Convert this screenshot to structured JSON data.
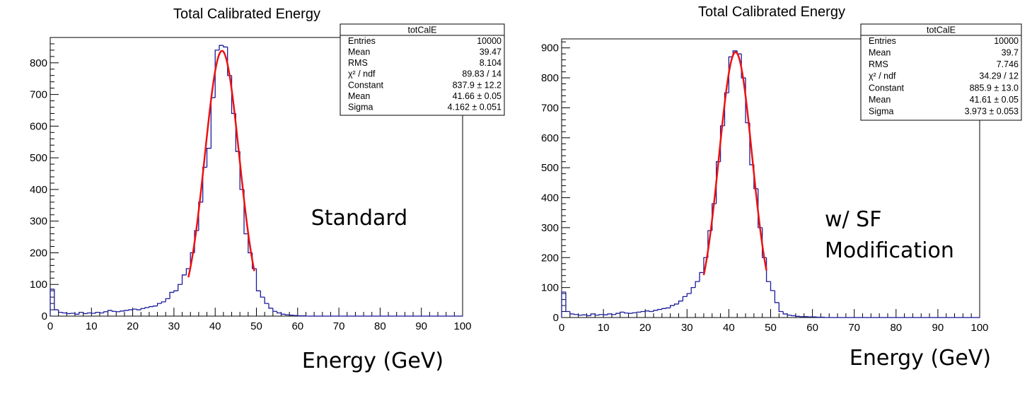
{
  "chart_data": [
    {
      "type": "bar",
      "title": "Total Calibrated Energy",
      "annotation": "Standard",
      "xlabel": "Energy (GeV)",
      "ylabel": "",
      "xlim": [
        0,
        100
      ],
      "ylim": [
        0,
        880
      ],
      "xticks": [
        0,
        10,
        20,
        30,
        40,
        50,
        60,
        70,
        80,
        90,
        100
      ],
      "yticks": [
        0,
        100,
        200,
        300,
        400,
        500,
        600,
        700,
        800
      ],
      "bin_width": 1,
      "values": [
        85,
        20,
        12,
        10,
        8,
        9,
        6,
        12,
        8,
        10,
        9,
        12,
        10,
        14,
        18,
        15,
        14,
        16,
        18,
        20,
        22,
        20,
        24,
        27,
        30,
        32,
        40,
        45,
        55,
        75,
        80,
        100,
        130,
        150,
        200,
        270,
        360,
        470,
        530,
        690,
        840,
        855,
        850,
        760,
        640,
        520,
        400,
        260,
        200,
        150,
        80,
        60,
        40,
        25,
        15,
        10,
        6,
        4,
        3,
        2,
        1,
        1,
        0,
        0,
        0,
        0,
        0,
        0,
        0,
        0,
        0,
        0,
        0,
        0,
        0,
        0,
        0,
        0,
        0,
        0,
        0,
        0,
        0,
        0,
        0,
        0,
        0,
        0,
        0,
        0,
        0,
        0,
        0,
        0,
        0,
        0,
        0,
        0,
        0,
        0
      ],
      "fit": {
        "function": "gaus",
        "constant": 837.9,
        "mean": 41.66,
        "sigma": 4.162,
        "range": [
          33.5,
          49.5
        ]
      },
      "stats": {
        "name": "totCalE",
        "rows": [
          {
            "label": "Entries",
            "value": "10000"
          },
          {
            "label": "Mean",
            "value": "39.47"
          },
          {
            "label": "RMS",
            "value": "8.104"
          },
          {
            "label": "χ² / ndf",
            "value": "89.83 / 14"
          },
          {
            "label": "Constant",
            "value": "837.9 ± 12.2"
          },
          {
            "label": "Mean",
            "value": "41.66 ± 0.05"
          },
          {
            "label": "Sigma",
            "value": "4.162 ± 0.051"
          }
        ]
      }
    },
    {
      "type": "bar",
      "title": "Total Calibrated Energy",
      "annotation": "w/ SF\nModification",
      "annotation_lines": [
        "w/ SF",
        "Modification"
      ],
      "xlabel": "Energy (GeV)",
      "ylabel": "",
      "xlim": [
        0,
        100
      ],
      "ylim": [
        0,
        930
      ],
      "xticks": [
        0,
        10,
        20,
        30,
        40,
        50,
        60,
        70,
        80,
        90,
        100
      ],
      "yticks": [
        0,
        100,
        200,
        300,
        400,
        500,
        600,
        700,
        800,
        900
      ],
      "bin_width": 1,
      "values": [
        85,
        20,
        12,
        10,
        8,
        9,
        6,
        12,
        8,
        10,
        9,
        12,
        10,
        14,
        18,
        15,
        14,
        16,
        18,
        20,
        22,
        20,
        24,
        27,
        30,
        32,
        40,
        45,
        55,
        70,
        80,
        100,
        120,
        150,
        200,
        290,
        380,
        520,
        640,
        750,
        870,
        890,
        880,
        800,
        650,
        510,
        430,
        300,
        200,
        120,
        90,
        50,
        20,
        12,
        8,
        6,
        4,
        3,
        3,
        2,
        2,
        1,
        1,
        0,
        0,
        0,
        0,
        0,
        0,
        0,
        0,
        0,
        0,
        0,
        0,
        0,
        0,
        0,
        0,
        0,
        0,
        0,
        0,
        0,
        0,
        0,
        0,
        0,
        0,
        0,
        0,
        0,
        0,
        0,
        0,
        0,
        0,
        0,
        0,
        0
      ],
      "fit": {
        "function": "gaus",
        "constant": 885.9,
        "mean": 41.61,
        "sigma": 3.973,
        "range": [
          34,
          49
        ]
      },
      "stats": {
        "name": "totCalE",
        "rows": [
          {
            "label": "Entries",
            "value": "10000"
          },
          {
            "label": "Mean",
            "value": "39.7"
          },
          {
            "label": "RMS",
            "value": "7.746"
          },
          {
            "label": "χ² / ndf",
            "value": "34.29 / 12"
          },
          {
            "label": "Constant",
            "value": "885.9 ± 13.0"
          },
          {
            "label": "Mean",
            "value": "41.61 ± 0.05"
          },
          {
            "label": "Sigma",
            "value": "3.973 ± 0.053"
          }
        ]
      }
    }
  ]
}
